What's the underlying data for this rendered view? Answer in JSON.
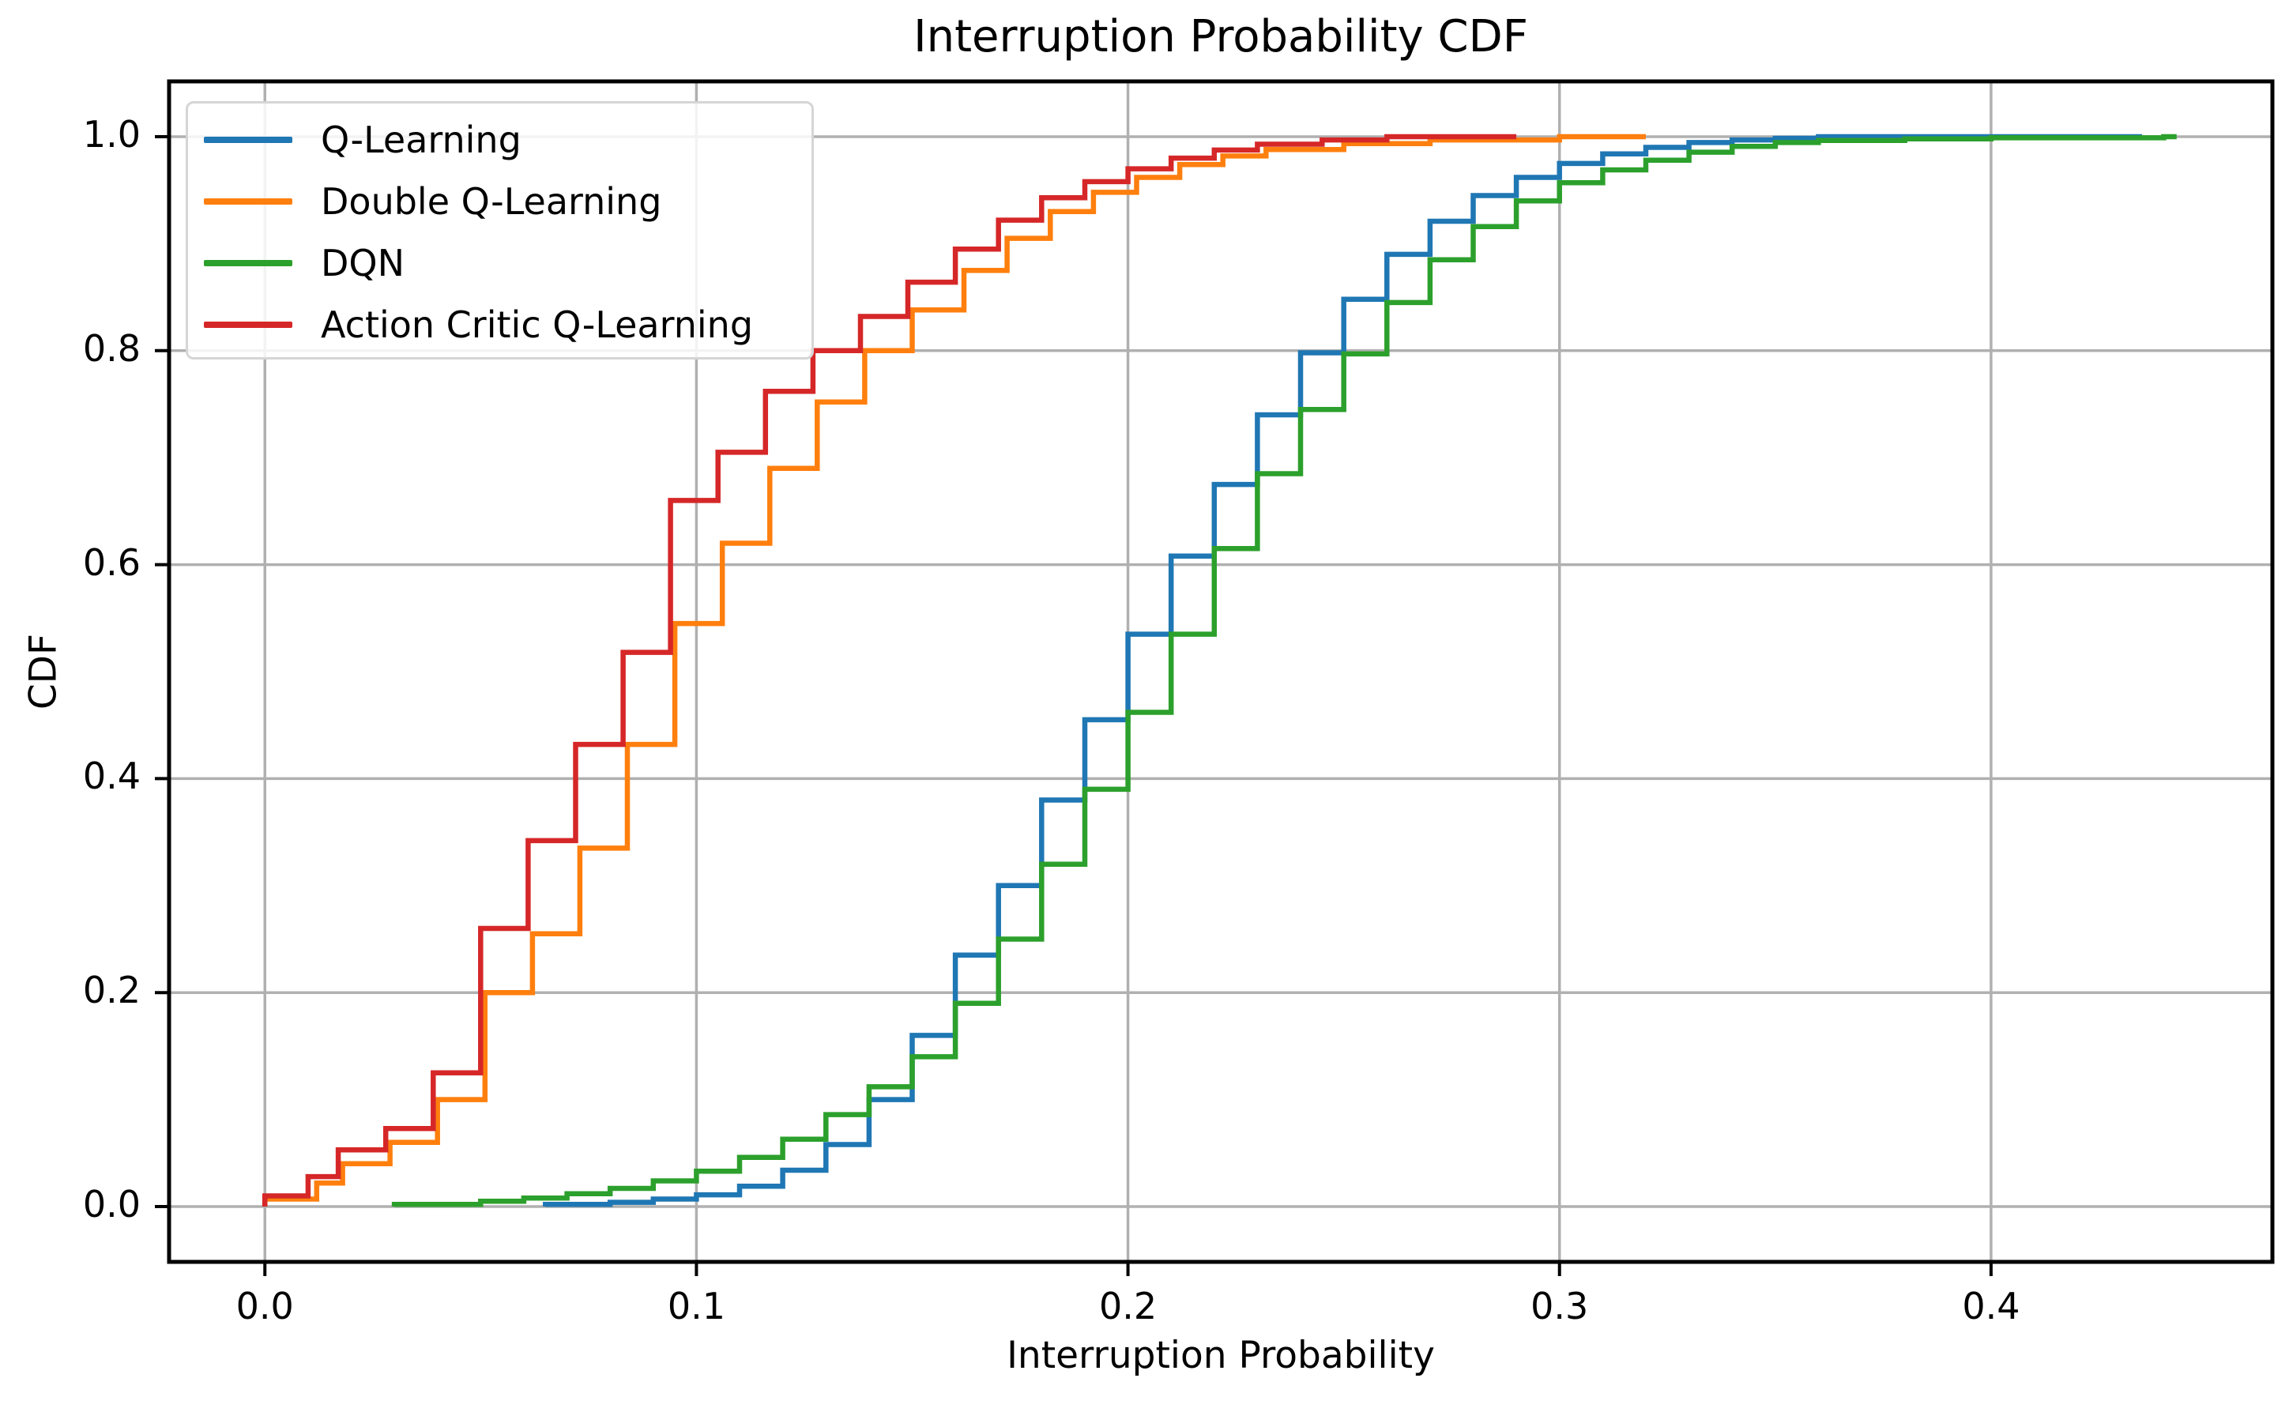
{
  "figure": {
    "title": "Interruption Probability CDF"
  },
  "x_axis": {
    "label": "Interruption Probability",
    "tick_labels": [
      "0.0",
      "0.1",
      "0.2",
      "0.3",
      "0.4"
    ],
    "tick_values": [
      0.0,
      0.1,
      0.2,
      0.3,
      0.4
    ]
  },
  "y_axis": {
    "label": "CDF",
    "tick_labels": [
      "0.0",
      "0.2",
      "0.4",
      "0.6",
      "0.8",
      "1.0"
    ],
    "tick_values": [
      0.0,
      0.2,
      0.4,
      0.6,
      0.8,
      1.0
    ]
  },
  "legend": {
    "position": "upper-left"
  },
  "colors": {
    "grid": "#b0b0b0",
    "spine": "#000000",
    "text": "#000000",
    "background": "#ffffff"
  },
  "chart_data": {
    "type": "line",
    "subtype": "step_cdf",
    "title": "Interruption Probability CDF",
    "xlabel": "Interruption Probability",
    "ylabel": "CDF",
    "xlim": [
      -0.0222,
      0.4652
    ],
    "ylim": [
      -0.0517,
      1.0517
    ],
    "x_ticks": [
      0.0,
      0.1,
      0.2,
      0.3,
      0.4
    ],
    "y_ticks": [
      0.0,
      0.2,
      0.4,
      0.6,
      0.8,
      1.0
    ],
    "grid": true,
    "legend_position": "upper left",
    "series": [
      {
        "name": "Q-Learning",
        "color": "#1f77b4",
        "x_end": 0.435,
        "points": [
          [
            0.065,
            0.002
          ],
          [
            0.08,
            0.004
          ],
          [
            0.09,
            0.007
          ],
          [
            0.1,
            0.011
          ],
          [
            0.11,
            0.019
          ],
          [
            0.12,
            0.034
          ],
          [
            0.13,
            0.058
          ],
          [
            0.14,
            0.1
          ],
          [
            0.15,
            0.16
          ],
          [
            0.16,
            0.235
          ],
          [
            0.17,
            0.3
          ],
          [
            0.18,
            0.38
          ],
          [
            0.19,
            0.455
          ],
          [
            0.2,
            0.535
          ],
          [
            0.21,
            0.608
          ],
          [
            0.22,
            0.675
          ],
          [
            0.23,
            0.74
          ],
          [
            0.24,
            0.798
          ],
          [
            0.25,
            0.848
          ],
          [
            0.26,
            0.89
          ],
          [
            0.27,
            0.921
          ],
          [
            0.28,
            0.945
          ],
          [
            0.29,
            0.962
          ],
          [
            0.3,
            0.975
          ],
          [
            0.31,
            0.984
          ],
          [
            0.32,
            0.99
          ],
          [
            0.33,
            0.9945
          ],
          [
            0.34,
            0.997
          ],
          [
            0.35,
            0.9985
          ],
          [
            0.36,
            1.0
          ]
        ]
      },
      {
        "name": "Double Q-Learning",
        "color": "#ff7f0e",
        "x_end": 0.32,
        "points": [
          [
            0.0,
            0.007
          ],
          [
            0.012,
            0.022
          ],
          [
            0.018,
            0.04
          ],
          [
            0.029,
            0.06
          ],
          [
            0.04,
            0.1
          ],
          [
            0.051,
            0.2
          ],
          [
            0.062,
            0.255
          ],
          [
            0.073,
            0.335
          ],
          [
            0.084,
            0.432
          ],
          [
            0.095,
            0.545
          ],
          [
            0.106,
            0.62
          ],
          [
            0.117,
            0.69
          ],
          [
            0.128,
            0.752
          ],
          [
            0.139,
            0.8
          ],
          [
            0.15,
            0.838
          ],
          [
            0.162,
            0.875
          ],
          [
            0.172,
            0.905
          ],
          [
            0.182,
            0.93
          ],
          [
            0.192,
            0.948
          ],
          [
            0.202,
            0.962
          ],
          [
            0.212,
            0.974
          ],
          [
            0.222,
            0.982
          ],
          [
            0.232,
            0.988
          ],
          [
            0.25,
            0.9935
          ],
          [
            0.27,
            0.997
          ],
          [
            0.3,
            1.0
          ]
        ]
      },
      {
        "name": "DQN",
        "color": "#2ca02c",
        "x_end": 0.443,
        "points": [
          [
            0.03,
            0.002
          ],
          [
            0.05,
            0.005
          ],
          [
            0.06,
            0.008
          ],
          [
            0.07,
            0.012
          ],
          [
            0.08,
            0.017
          ],
          [
            0.09,
            0.024
          ],
          [
            0.1,
            0.033
          ],
          [
            0.11,
            0.046
          ],
          [
            0.12,
            0.063
          ],
          [
            0.13,
            0.086
          ],
          [
            0.14,
            0.112
          ],
          [
            0.15,
            0.14
          ],
          [
            0.16,
            0.19
          ],
          [
            0.17,
            0.25
          ],
          [
            0.18,
            0.32
          ],
          [
            0.19,
            0.39
          ],
          [
            0.2,
            0.462
          ],
          [
            0.21,
            0.535
          ],
          [
            0.22,
            0.615
          ],
          [
            0.23,
            0.685
          ],
          [
            0.24,
            0.745
          ],
          [
            0.25,
            0.797
          ],
          [
            0.26,
            0.845
          ],
          [
            0.27,
            0.885
          ],
          [
            0.28,
            0.916
          ],
          [
            0.29,
            0.94
          ],
          [
            0.3,
            0.957
          ],
          [
            0.31,
            0.969
          ],
          [
            0.32,
            0.978
          ],
          [
            0.33,
            0.9855
          ],
          [
            0.34,
            0.991
          ],
          [
            0.35,
            0.9945
          ],
          [
            0.36,
            0.9965
          ],
          [
            0.38,
            0.998
          ],
          [
            0.4,
            0.999
          ],
          [
            0.44,
            1.0
          ]
        ]
      },
      {
        "name": "Action Critic Q-Learning",
        "color": "#d62728",
        "x_end": 0.29,
        "points": [
          [
            0.0,
            0.01
          ],
          [
            0.01,
            0.028
          ],
          [
            0.017,
            0.053
          ],
          [
            0.028,
            0.073
          ],
          [
            0.039,
            0.125
          ],
          [
            0.05,
            0.26
          ],
          [
            0.061,
            0.342
          ],
          [
            0.072,
            0.432
          ],
          [
            0.083,
            0.518
          ],
          [
            0.094,
            0.66
          ],
          [
            0.105,
            0.705
          ],
          [
            0.116,
            0.762
          ],
          [
            0.127,
            0.8
          ],
          [
            0.138,
            0.832
          ],
          [
            0.149,
            0.864
          ],
          [
            0.16,
            0.895
          ],
          [
            0.17,
            0.922
          ],
          [
            0.18,
            0.943
          ],
          [
            0.19,
            0.958
          ],
          [
            0.2,
            0.97
          ],
          [
            0.21,
            0.98
          ],
          [
            0.22,
            0.9875
          ],
          [
            0.23,
            0.993
          ],
          [
            0.245,
            0.997
          ],
          [
            0.26,
            1.0
          ]
        ]
      }
    ]
  }
}
